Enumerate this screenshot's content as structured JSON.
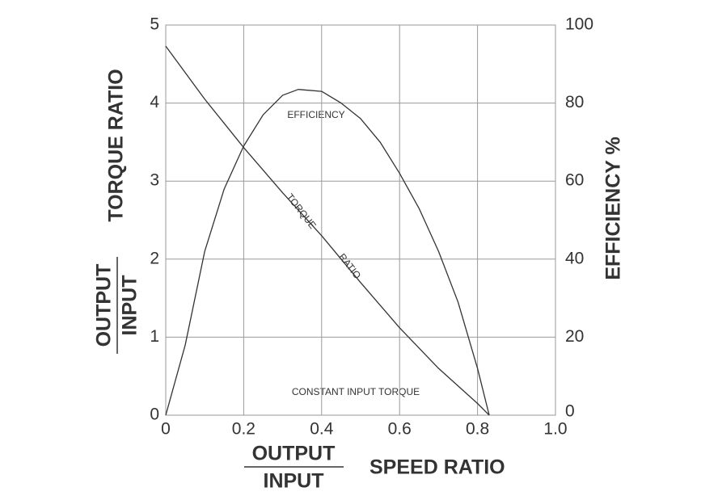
{
  "chart_data": {
    "type": "line",
    "y_label": "TORQUE RATIO",
    "y_label_fraction": {
      "numerator": "OUTPUT",
      "denominator": "INPUT"
    },
    "y2_label": "EFFICIENCY %",
    "x_label": "SPEED RATIO",
    "x_label_fraction": {
      "numerator": "OUTPUT",
      "denominator": "INPUT"
    },
    "annotations": [
      "EFFICIENCY",
      "TORQUE",
      "RATIO",
      "CONSTANT INPUT TORQUE"
    ],
    "xlim": [
      0,
      1
    ],
    "xticks": [
      0,
      0.2,
      0.4,
      0.6,
      0.8,
      {
        "value": 1,
        "label": "1.0"
      }
    ],
    "ylim": [
      0,
      5
    ],
    "yticks": [
      0,
      1,
      2,
      3,
      4,
      5
    ],
    "y2lim": [
      0,
      100
    ],
    "y2ticks": [
      0,
      20,
      40,
      60,
      80,
      100
    ],
    "grid": true,
    "series": [
      {
        "color": "#333333",
        "x": [
          0,
          0.1,
          0.2,
          0.3,
          0.4,
          0.5,
          0.6,
          0.7,
          0.8,
          0.83
        ],
        "values": [
          4.73,
          4.05,
          3.43,
          2.85,
          2.3,
          1.7,
          1.12,
          0.6,
          0.15,
          0
        ]
      },
      {
        "color": "#333333",
        "axis": "y2",
        "x": [
          0,
          0.05,
          0.1,
          0.15,
          0.2,
          0.25,
          0.3,
          0.34,
          0.4,
          0.45,
          0.5,
          0.55,
          0.6,
          0.65,
          0.7,
          0.75,
          0.8,
          0.83
        ],
        "values": [
          0,
          18,
          42,
          58,
          69,
          77,
          82,
          83.5,
          83,
          80,
          76,
          70,
          62,
          53,
          42,
          29,
          12,
          0
        ]
      }
    ]
  }
}
